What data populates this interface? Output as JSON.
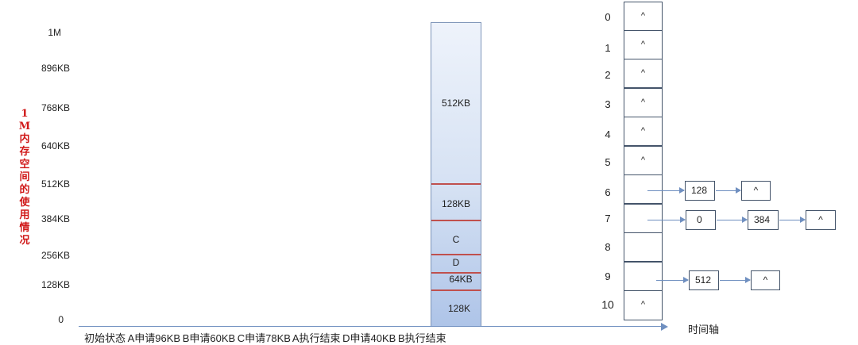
{
  "y_axis": {
    "label": "1M内存空间的使用情况",
    "ticks": [
      "1M",
      "896KB",
      "768KB",
      "640KB",
      "512KB",
      "384KB",
      "256KB",
      "128KB",
      "0"
    ]
  },
  "memory_stack": {
    "segments": [
      "512KB",
      "128KB",
      "C",
      "D",
      "64KB",
      "128K"
    ]
  },
  "time_axis": {
    "title": "时间轴",
    "steps": "初始状态 A申请96KB B申请60KB C申请78KB A执行结束 D申请40KB B执行结束"
  },
  "free_list": {
    "indices": [
      "0",
      "1",
      "2",
      "3",
      "4",
      "5",
      "6",
      "7",
      "8",
      "9",
      "10"
    ],
    "null_symbol": "^",
    "row6": [
      "128",
      "^"
    ],
    "row7": [
      "0",
      "384",
      "^"
    ],
    "row9": [
      "512",
      "^"
    ]
  },
  "colors": {
    "divider": "#c0504d",
    "axis": "#6f8fc0",
    "vertical_label": "#d01818"
  }
}
